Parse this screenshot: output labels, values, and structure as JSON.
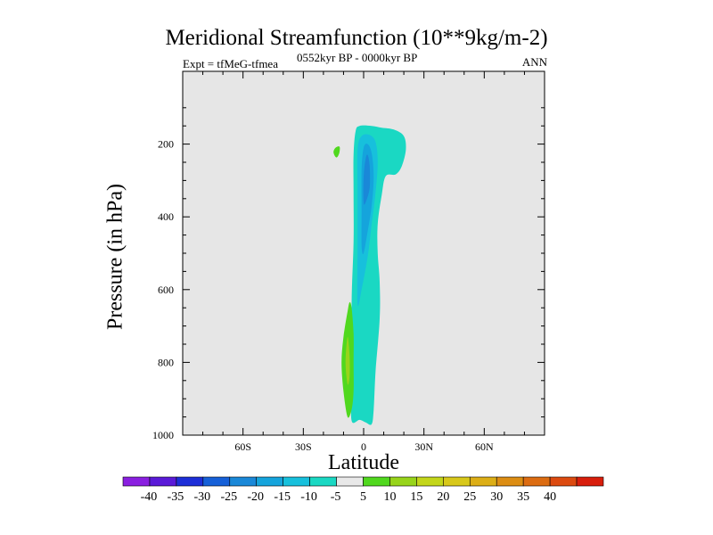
{
  "chart_data": {
    "type": "contour",
    "title": "Meridional Streamfunction (10**9kg/m-2)",
    "left_string": "Expt = tfMeG-tfmea",
    "center_string": "0552kyr BP - 0000kyr BP",
    "right_string": "ANN",
    "xlabel": "Latitude",
    "ylabel": "Pressure (in hPa)",
    "xlim": [
      -90,
      90
    ],
    "ylim": [
      1000,
      0
    ],
    "x_ticks": [
      {
        "value": -60,
        "label": "60S"
      },
      {
        "value": -30,
        "label": "30S"
      },
      {
        "value": 0,
        "label": "0"
      },
      {
        "value": 30,
        "label": "30N"
      },
      {
        "value": 60,
        "label": "60N"
      }
    ],
    "y_ticks": [
      {
        "value": 200,
        "label": "200"
      },
      {
        "value": 400,
        "label": "400"
      },
      {
        "value": 600,
        "label": "600"
      },
      {
        "value": 800,
        "label": "800"
      },
      {
        "value": 1000,
        "label": "1000"
      }
    ],
    "plot_background": "#e6e6e6",
    "colorbar": {
      "colors": [
        "#8a1fe0",
        "#5a1ad8",
        "#1d2ed8",
        "#1660d8",
        "#1a88d8",
        "#15a4dc",
        "#17c0dc",
        "#1ad8c3",
        "#e8e8e8",
        "#50d81e",
        "#97d41a",
        "#c3d61a",
        "#d8c81a",
        "#dcae16",
        "#dc8d13",
        "#dc6c12",
        "#dc4a10",
        "#d81e0c"
      ],
      "labels": [
        "-40",
        "-35",
        "-30",
        "-25",
        "-20",
        "-15",
        "-10",
        "-5",
        "5",
        "10",
        "15",
        "20",
        "25",
        "30",
        "35",
        "40"
      ]
    },
    "features": [
      {
        "name": "main-negative-cell",
        "level": -5,
        "color": "#1ad8c3",
        "lat_range": [
          -7,
          21
        ],
        "p_range": [
          150,
          970
        ],
        "outline": [
          [
            -6,
            960
          ],
          [
            -6,
            860
          ],
          [
            -6,
            640
          ],
          [
            -5,
            470
          ],
          [
            -5,
            330
          ],
          [
            -5,
            230
          ],
          [
            -4,
            165
          ],
          [
            -2,
            150
          ],
          [
            4,
            150
          ],
          [
            9,
            155
          ],
          [
            15,
            160
          ],
          [
            20,
            178
          ],
          [
            21,
            215
          ],
          [
            19,
            260
          ],
          [
            16,
            283
          ],
          [
            11,
            288
          ],
          [
            9,
            340
          ],
          [
            7,
            420
          ],
          [
            7,
            500
          ],
          [
            8,
            580
          ],
          [
            8,
            680
          ],
          [
            6,
            820
          ],
          [
            5,
            930
          ],
          [
            4,
            970
          ],
          [
            1,
            965
          ],
          [
            -2,
            958
          ],
          [
            -6,
            960
          ]
        ]
      },
      {
        "name": "core-negative-cell",
        "level": -10,
        "color": "#17c0dc",
        "lat_range": [
          -3,
          7
        ],
        "p_range": [
          175,
          640
        ],
        "outline": [
          [
            -3,
            640
          ],
          [
            -3,
            480
          ],
          [
            -3,
            330
          ],
          [
            -3,
            215
          ],
          [
            -1,
            178
          ],
          [
            3,
            175
          ],
          [
            6,
            195
          ],
          [
            7,
            250
          ],
          [
            6,
            330
          ],
          [
            4,
            420
          ],
          [
            2,
            510
          ],
          [
            -1,
            600
          ],
          [
            -3,
            640
          ]
        ]
      },
      {
        "name": "inner-core-negative-cell",
        "level": -15,
        "color": "#15a4dc",
        "lat_range": [
          -1,
          5
        ],
        "p_range": [
          200,
          500
        ],
        "outline": [
          [
            -1,
            480
          ],
          [
            -1,
            380
          ],
          [
            -1,
            270
          ],
          [
            0,
            210
          ],
          [
            2,
            200
          ],
          [
            4,
            225
          ],
          [
            5,
            290
          ],
          [
            4,
            370
          ],
          [
            2,
            440
          ],
          [
            0,
            500
          ],
          [
            -1,
            480
          ]
        ]
      },
      {
        "name": "innermost-negative-cell",
        "level": -20,
        "color": "#1a88d8",
        "lat_range": [
          0,
          3
        ],
        "p_range": [
          230,
          360
        ],
        "outline": [
          [
            0,
            360
          ],
          [
            0,
            290
          ],
          [
            1,
            240
          ],
          [
            2,
            230
          ],
          [
            3,
            260
          ],
          [
            3,
            320
          ],
          [
            1,
            360
          ],
          [
            0,
            360
          ]
        ]
      },
      {
        "name": "lower-positive-cell",
        "level": 5,
        "color": "#50d81e",
        "lat_range": [
          -11,
          -5
        ],
        "p_range": [
          635,
          950
        ],
        "outline": [
          [
            -8,
            950
          ],
          [
            -10,
            880
          ],
          [
            -11,
            800
          ],
          [
            -10,
            730
          ],
          [
            -8,
            660
          ],
          [
            -7,
            635
          ],
          [
            -6,
            650
          ],
          [
            -5,
            720
          ],
          [
            -5,
            800
          ],
          [
            -5,
            880
          ],
          [
            -6,
            930
          ],
          [
            -8,
            950
          ]
        ]
      },
      {
        "name": "lower-positive-core",
        "level": 10,
        "color": "#97d41a",
        "lat_range": [
          -9,
          -7
        ],
        "p_range": [
          730,
          860
        ],
        "outline": [
          [
            -8,
            860
          ],
          [
            -9,
            800
          ],
          [
            -8,
            730
          ],
          [
            -7,
            780
          ],
          [
            -7,
            840
          ],
          [
            -8,
            860
          ]
        ]
      },
      {
        "name": "small-positive-cell",
        "level": 5,
        "color": "#50d81e",
        "lat_range": [
          -15,
          -12
        ],
        "p_range": [
          207,
          235
        ],
        "outline": [
          [
            -14,
            235
          ],
          [
            -15,
            222
          ],
          [
            -14,
            210
          ],
          [
            -12,
            207
          ],
          [
            -12,
            222
          ],
          [
            -13,
            235
          ],
          [
            -14,
            235
          ]
        ]
      }
    ]
  }
}
